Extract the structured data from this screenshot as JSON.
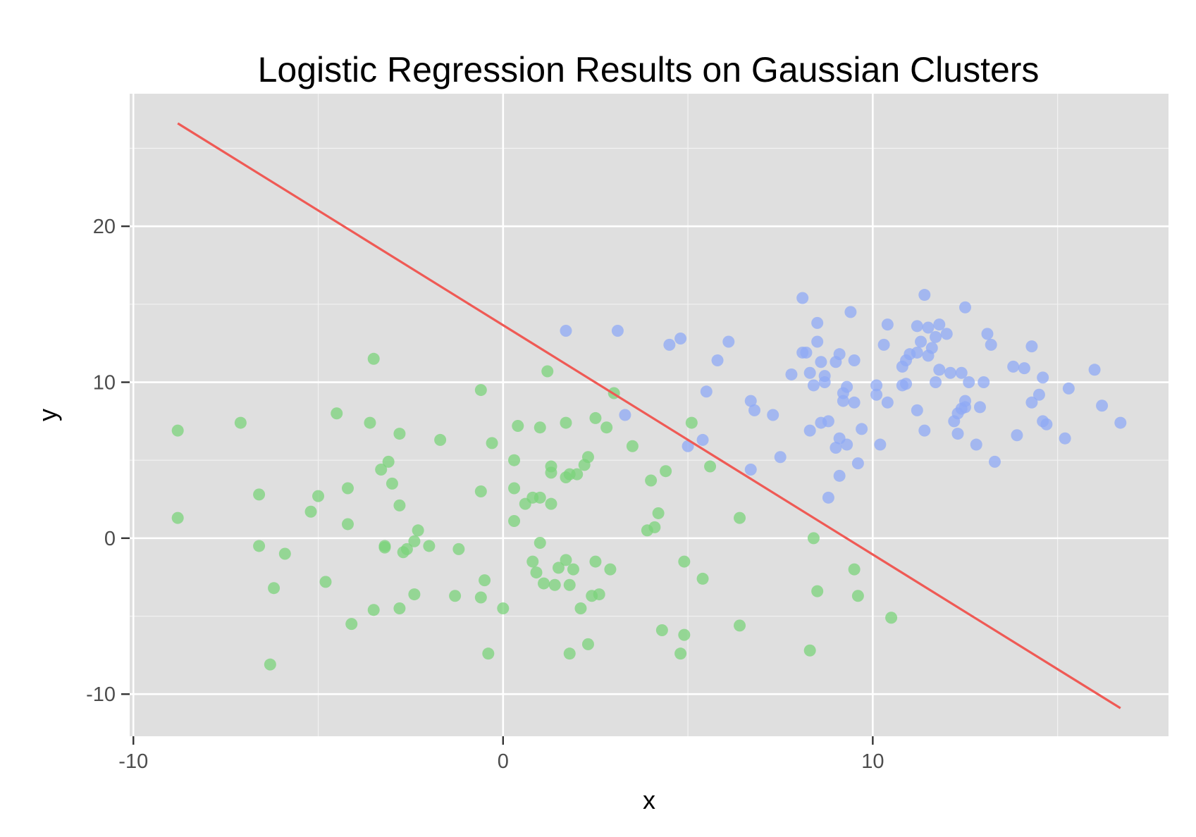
{
  "chart_data": {
    "type": "scatter",
    "title": "Logistic Regression Results on Gaussian Clusters",
    "xlabel": "x",
    "ylabel": "y",
    "xlim": [
      -10.1,
      18.0
    ],
    "ylim": [
      -12.7,
      28.5
    ],
    "x_ticks": [
      -10,
      0,
      10
    ],
    "y_ticks": [
      -10,
      0,
      10,
      20
    ],
    "x_tick_labels": [
      "-10",
      "0",
      "10"
    ],
    "y_tick_labels": [
      "-10",
      "0",
      "10",
      "20"
    ],
    "grid": true,
    "legend": "none",
    "colors": {
      "panel": "#dfdfdf",
      "grid_major": "#ffffff",
      "grid_minor": "#f2f2f2",
      "green_cluster": "#7bd37b",
      "blue_cluster": "#8fa9f5",
      "decision_boundary": "#ef5a55"
    },
    "series": [
      {
        "color": "#7bd37b",
        "points": [
          [
            -8.8,
            6.9
          ],
          [
            -8.8,
            1.3
          ],
          [
            -7.1,
            7.4
          ],
          [
            -6.6,
            2.8
          ],
          [
            -6.6,
            -0.5
          ],
          [
            -6.3,
            -8.1
          ],
          [
            -6.2,
            -3.2
          ],
          [
            -5.9,
            -1.0
          ],
          [
            -5.2,
            1.7
          ],
          [
            -5.0,
            2.7
          ],
          [
            -4.8,
            -2.8
          ],
          [
            -4.5,
            8.0
          ],
          [
            -4.2,
            0.9
          ],
          [
            -4.2,
            3.2
          ],
          [
            -4.1,
            -5.5
          ],
          [
            -3.6,
            7.4
          ],
          [
            -3.5,
            -4.6
          ],
          [
            -3.5,
            11.5
          ],
          [
            -3.3,
            4.4
          ],
          [
            -3.2,
            -0.5
          ],
          [
            -3.2,
            -0.6
          ],
          [
            -3.1,
            4.9
          ],
          [
            -3.0,
            3.5
          ],
          [
            -2.8,
            -4.5
          ],
          [
            -2.8,
            6.7
          ],
          [
            -2.8,
            2.1
          ],
          [
            -2.7,
            -0.9
          ],
          [
            -2.6,
            -0.7
          ],
          [
            -2.4,
            -0.2
          ],
          [
            -2.4,
            -3.6
          ],
          [
            -2.3,
            0.5
          ],
          [
            -2.0,
            -0.5
          ],
          [
            -1.7,
            6.3
          ],
          [
            -1.3,
            -3.7
          ],
          [
            -1.2,
            -0.7
          ],
          [
            -0.6,
            9.5
          ],
          [
            -0.6,
            3.0
          ],
          [
            -0.6,
            -3.8
          ],
          [
            -0.5,
            -2.7
          ],
          [
            -0.4,
            -7.4
          ],
          [
            -0.3,
            6.1
          ],
          [
            0.0,
            -4.5
          ],
          [
            0.3,
            1.1
          ],
          [
            0.3,
            5.0
          ],
          [
            0.3,
            3.2
          ],
          [
            0.4,
            7.2
          ],
          [
            0.6,
            2.2
          ],
          [
            0.8,
            2.6
          ],
          [
            0.8,
            -1.5
          ],
          [
            0.9,
            -2.2
          ],
          [
            1.0,
            2.6
          ],
          [
            1.0,
            7.1
          ],
          [
            1.0,
            -0.3
          ],
          [
            1.1,
            -2.9
          ],
          [
            1.2,
            10.7
          ],
          [
            1.3,
            4.2
          ],
          [
            1.3,
            2.2
          ],
          [
            1.3,
            4.6
          ],
          [
            1.4,
            -3.0
          ],
          [
            1.5,
            -1.9
          ],
          [
            1.7,
            7.4
          ],
          [
            1.7,
            3.9
          ],
          [
            1.7,
            -1.4
          ],
          [
            1.8,
            -7.4
          ],
          [
            1.8,
            -3.0
          ],
          [
            1.8,
            4.1
          ],
          [
            1.9,
            -2.0
          ],
          [
            2.0,
            4.1
          ],
          [
            2.1,
            -4.5
          ],
          [
            2.2,
            4.7
          ],
          [
            2.3,
            5.2
          ],
          [
            2.3,
            -6.8
          ],
          [
            2.4,
            -3.7
          ],
          [
            2.5,
            -1.5
          ],
          [
            2.5,
            7.7
          ],
          [
            2.6,
            -3.6
          ],
          [
            2.8,
            7.1
          ],
          [
            2.9,
            -2.0
          ],
          [
            3.0,
            9.3
          ],
          [
            3.5,
            5.9
          ],
          [
            3.9,
            0.5
          ],
          [
            4.0,
            3.7
          ],
          [
            4.1,
            0.7
          ],
          [
            4.2,
            1.6
          ],
          [
            4.3,
            -5.9
          ],
          [
            4.4,
            4.3
          ],
          [
            4.8,
            -7.4
          ],
          [
            4.9,
            -1.5
          ],
          [
            4.9,
            -6.2
          ],
          [
            5.1,
            7.4
          ],
          [
            5.4,
            -2.6
          ],
          [
            5.6,
            4.6
          ],
          [
            6.4,
            1.3
          ],
          [
            6.4,
            -5.6
          ],
          [
            8.4,
            -0.0
          ],
          [
            8.3,
            -7.2
          ],
          [
            8.5,
            -3.4
          ],
          [
            9.5,
            -2.0
          ],
          [
            9.6,
            -3.7
          ],
          [
            10.5,
            -5.1
          ]
        ]
      },
      {
        "color": "#8fa9f5",
        "points": [
          [
            1.7,
            13.3
          ],
          [
            3.1,
            13.3
          ],
          [
            3.3,
            7.9
          ],
          [
            4.5,
            12.4
          ],
          [
            4.8,
            12.8
          ],
          [
            5.0,
            5.9
          ],
          [
            5.4,
            6.3
          ],
          [
            5.5,
            9.4
          ],
          [
            5.8,
            11.4
          ],
          [
            6.1,
            12.6
          ],
          [
            6.7,
            8.8
          ],
          [
            6.7,
            4.4
          ],
          [
            6.8,
            8.2
          ],
          [
            7.3,
            7.9
          ],
          [
            7.5,
            5.2
          ],
          [
            7.8,
            10.5
          ],
          [
            8.1,
            15.4
          ],
          [
            8.1,
            11.9
          ],
          [
            8.2,
            11.9
          ],
          [
            8.3,
            10.6
          ],
          [
            8.3,
            6.9
          ],
          [
            8.4,
            9.8
          ],
          [
            8.5,
            12.6
          ],
          [
            8.5,
            13.8
          ],
          [
            8.6,
            11.3
          ],
          [
            8.6,
            7.4
          ],
          [
            8.7,
            10.0
          ],
          [
            8.7,
            10.4
          ],
          [
            8.8,
            7.5
          ],
          [
            8.8,
            2.6
          ],
          [
            9.0,
            11.3
          ],
          [
            9.0,
            5.8
          ],
          [
            9.1,
            11.8
          ],
          [
            9.1,
            6.4
          ],
          [
            9.1,
            4.0
          ],
          [
            9.2,
            9.3
          ],
          [
            9.2,
            8.8
          ],
          [
            9.3,
            6.0
          ],
          [
            9.3,
            9.7
          ],
          [
            9.4,
            14.5
          ],
          [
            9.5,
            11.4
          ],
          [
            9.5,
            8.7
          ],
          [
            9.6,
            4.8
          ],
          [
            9.7,
            7.0
          ],
          [
            10.1,
            9.8
          ],
          [
            10.1,
            9.2
          ],
          [
            10.2,
            6.0
          ],
          [
            10.3,
            12.4
          ],
          [
            10.4,
            13.7
          ],
          [
            10.4,
            8.7
          ],
          [
            10.8,
            11.0
          ],
          [
            10.8,
            9.8
          ],
          [
            10.9,
            9.9
          ],
          [
            10.9,
            11.4
          ],
          [
            11.0,
            11.8
          ],
          [
            11.2,
            13.6
          ],
          [
            11.2,
            11.9
          ],
          [
            11.2,
            8.2
          ],
          [
            11.3,
            12.6
          ],
          [
            11.4,
            6.9
          ],
          [
            11.4,
            15.6
          ],
          [
            11.5,
            11.7
          ],
          [
            11.5,
            13.5
          ],
          [
            11.6,
            12.2
          ],
          [
            11.7,
            12.9
          ],
          [
            11.7,
            10.0
          ],
          [
            11.8,
            13.7
          ],
          [
            11.8,
            10.8
          ],
          [
            12.0,
            13.1
          ],
          [
            12.1,
            10.6
          ],
          [
            12.2,
            7.5
          ],
          [
            12.3,
            6.7
          ],
          [
            12.3,
            8.0
          ],
          [
            12.4,
            10.6
          ],
          [
            12.4,
            8.3
          ],
          [
            12.5,
            14.8
          ],
          [
            12.5,
            8.8
          ],
          [
            12.5,
            8.4
          ],
          [
            12.6,
            10.0
          ],
          [
            12.8,
            6.0
          ],
          [
            12.9,
            8.4
          ],
          [
            13.0,
            10.0
          ],
          [
            13.1,
            13.1
          ],
          [
            13.2,
            12.4
          ],
          [
            13.3,
            4.9
          ],
          [
            13.8,
            11.0
          ],
          [
            13.9,
            6.6
          ],
          [
            14.1,
            10.9
          ],
          [
            14.3,
            12.3
          ],
          [
            14.3,
            8.7
          ],
          [
            14.5,
            9.2
          ],
          [
            14.6,
            10.3
          ],
          [
            14.6,
            7.5
          ],
          [
            14.7,
            7.3
          ],
          [
            15.2,
            6.4
          ],
          [
            15.3,
            9.6
          ],
          [
            16.0,
            10.8
          ],
          [
            16.2,
            8.5
          ],
          [
            16.7,
            7.4
          ]
        ]
      }
    ],
    "lines": [
      {
        "color": "#ef5a55",
        "x": [
          -8.8,
          16.7
        ],
        "y": [
          26.6,
          -10.9
        ]
      }
    ]
  }
}
